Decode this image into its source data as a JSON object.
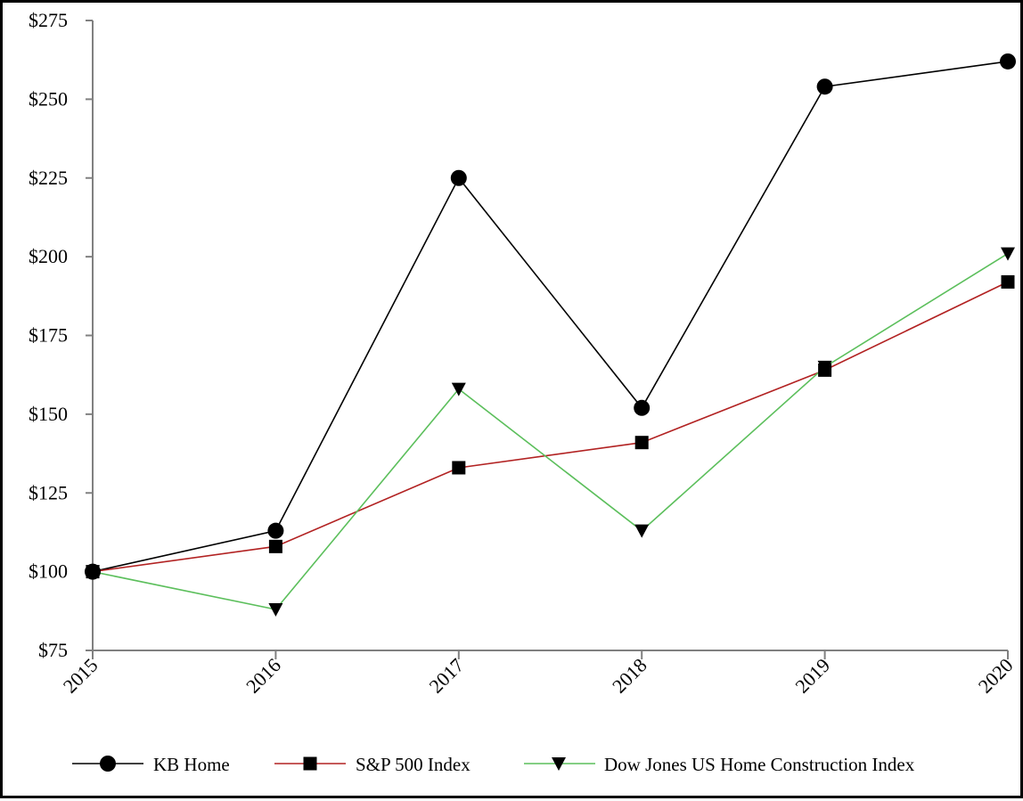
{
  "chart_data": {
    "type": "line",
    "title": "",
    "xlabel": "",
    "ylabel": "",
    "categories": [
      "2015",
      "2016",
      "2017",
      "2018",
      "2019",
      "2020"
    ],
    "ylim": [
      75,
      275
    ],
    "yticks": [
      75,
      100,
      125,
      150,
      175,
      200,
      225,
      250,
      275
    ],
    "ytick_labels": [
      "$75",
      "$100",
      "$125",
      "$150",
      "$175",
      "$200",
      "$225",
      "$250",
      "$275"
    ],
    "grid": false,
    "legend_position": "bottom",
    "series": [
      {
        "name": "KB Home",
        "color": "#000000",
        "marker": "circle",
        "values": [
          100,
          113,
          225,
          152,
          254,
          262
        ]
      },
      {
        "name": "S&P 500 Index",
        "color": "#b22222",
        "marker": "square",
        "values": [
          100,
          108,
          133,
          141,
          164,
          192
        ]
      },
      {
        "name": "Dow Jones US Home Construction Index",
        "color": "#5cbf5c",
        "marker": "triangle-down",
        "values": [
          100,
          88,
          158,
          113,
          165,
          201
        ]
      }
    ]
  }
}
